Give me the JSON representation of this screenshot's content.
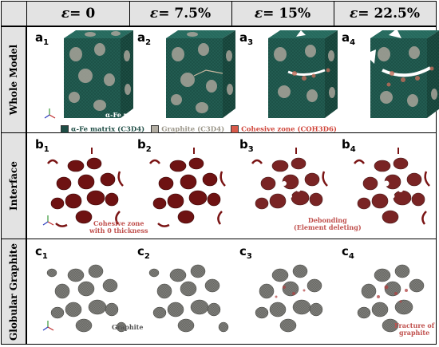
{
  "columns": [
    {
      "eps": "ε",
      "value": " = 0"
    },
    {
      "eps": "ε",
      "value": " = 7.5%"
    },
    {
      "eps": "ε",
      "value": " = 15%"
    },
    {
      "eps": "ε",
      "value": " = 22.5%"
    }
  ],
  "rows": [
    {
      "title": "Whole Model",
      "letter": "a"
    },
    {
      "title": "Interface",
      "letter": "b"
    },
    {
      "title": "Globular Graphite",
      "letter": "c"
    }
  ],
  "panel_subscripts": [
    "1",
    "2",
    "3",
    "4"
  ],
  "annotations": {
    "matrix": "α-Fe matrix",
    "cohesive_zone_line1": "Cohesive zone",
    "cohesive_zone_line2": "with 0 thickness",
    "debonding_line1": "Debonding",
    "debonding_line2": "(Element deleting)",
    "graphite": "Graphite",
    "fracture_line1": "Fracture of",
    "fracture_line2": "graphite"
  },
  "legend": [
    {
      "label": "α-Fe matrix (C3D4)",
      "color": "#1f4d45",
      "text_color": "#1f4d45"
    },
    {
      "label": "Graphite (C3D4)",
      "color": "#b3aea3",
      "text_color": "#9a9588"
    },
    {
      "label": "Cohesive zone (COH3D6)",
      "color": "#d95a4a",
      "text_color": "#d0453a"
    }
  ],
  "colors": {
    "matrix": "#1f5a50",
    "graphite": "#8a8a85",
    "cohesive": "#7a1414",
    "header_bg": "#e3e3e3"
  }
}
